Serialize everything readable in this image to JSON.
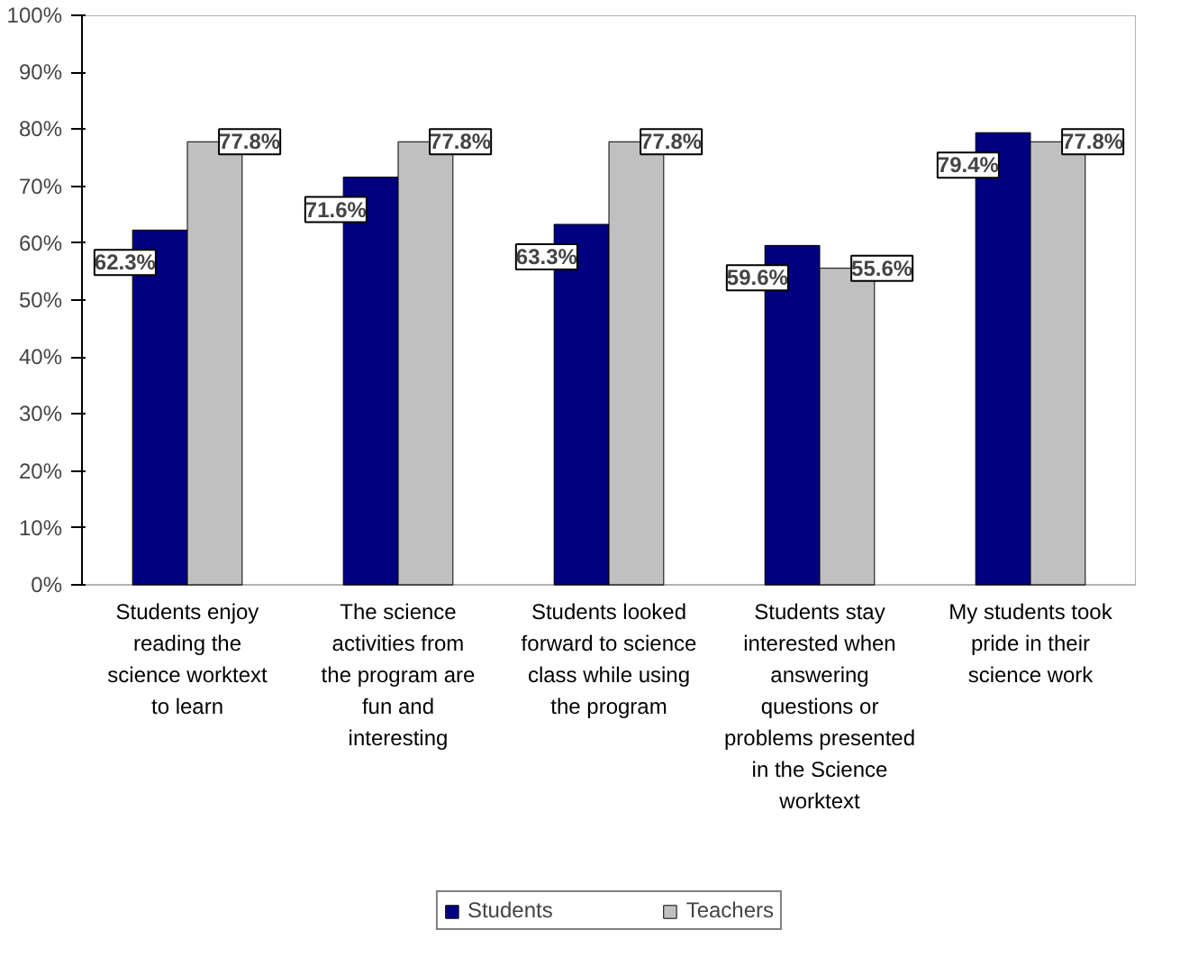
{
  "chart_data": {
    "type": "bar",
    "categories": [
      "Students enjoy reading the science worktext to learn",
      "The science activities from the program are fun and interesting",
      "Students looked forward to science class while using the program",
      "Students stay interested when answering questions or problems presented in the Science worktext",
      "My students took pride in their science work"
    ],
    "series": [
      {
        "name": "Students",
        "color": "#000080",
        "values": [
          62.3,
          71.6,
          63.3,
          59.6,
          79.4
        ]
      },
      {
        "name": "Teachers",
        "color": "#c0c0c0",
        "values": [
          77.8,
          77.8,
          77.8,
          55.6,
          77.8
        ]
      }
    ],
    "ylim": [
      0,
      100
    ],
    "yticks": [
      {
        "value": 0,
        "label": "0%"
      },
      {
        "value": 10,
        "label": "10%"
      },
      {
        "value": 20,
        "label": "20%"
      },
      {
        "value": 30,
        "label": "30%"
      },
      {
        "value": 40,
        "label": "40%"
      },
      {
        "value": 50,
        "label": "50%"
      },
      {
        "value": 60,
        "label": "60%"
      },
      {
        "value": 70,
        "label": "70%"
      },
      {
        "value": 80,
        "label": "80%"
      },
      {
        "value": 90,
        "label": "90%"
      },
      {
        "value": 100,
        "label": "100%"
      }
    ],
    "value_labels": [
      [
        "62.3%",
        "71.6%",
        "63.3%",
        "59.6%",
        "79.4%"
      ],
      [
        "77.8%",
        "77.8%",
        "77.8%",
        "55.6%",
        "77.8%"
      ]
    ],
    "grid": false,
    "legend": "bottom"
  }
}
